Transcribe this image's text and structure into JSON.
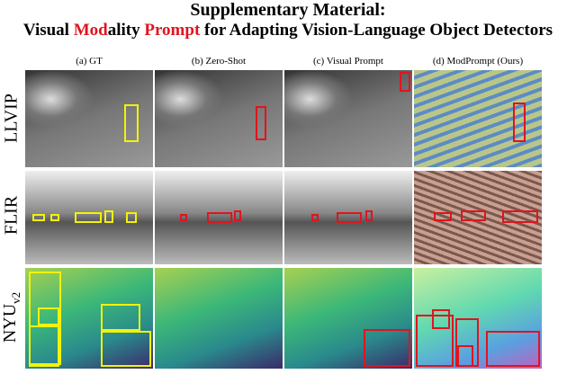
{
  "header": {
    "title_line1": "Supplementary Material:",
    "title_line2": [
      "Visual ",
      "Mod",
      "ality ",
      "Prompt",
      " for Adapting Vision-Language Object Detectors"
    ]
  },
  "columns": [
    "(a) GT",
    "(b) Zero-Shot",
    "(c) Visual Prompt",
    "(d) ModPrompt (Ours)"
  ],
  "rows": [
    {
      "label": "LLVIP"
    },
    {
      "label": "FLIR"
    },
    {
      "label": "NYU",
      "subscript": "v2"
    }
  ]
}
